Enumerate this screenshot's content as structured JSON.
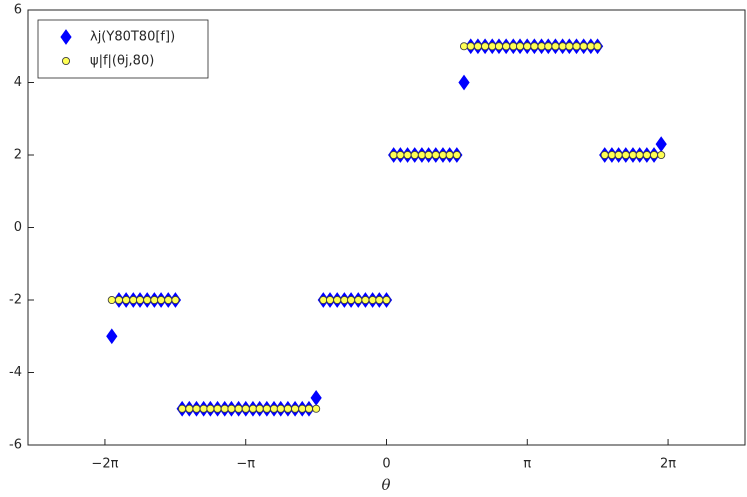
{
  "chart_data": {
    "type": "scatter",
    "x_label": "θ",
    "xlim": [
      -8,
      8
    ],
    "ylim": [
      -6,
      6
    ],
    "xticks": [
      {
        "value": -6.2832,
        "label": "−2π"
      },
      {
        "value": -3.1416,
        "label": "−π"
      },
      0,
      {
        "value": 3.1416,
        "label": "π"
      },
      {
        "value": 6.2832,
        "label": "2π"
      }
    ],
    "yticks": [
      -6,
      -4,
      -2,
      0,
      2,
      4,
      6
    ],
    "grid": false,
    "legend": "upper left",
    "x": [
      -6.13,
      -5.97,
      -5.81,
      -5.65,
      -5.5,
      -5.34,
      -5.18,
      -5.03,
      -4.87,
      -4.71,
      -4.56,
      -4.4,
      -4.24,
      -4.08,
      -3.93,
      -3.77,
      -3.61,
      -3.46,
      -3.3,
      -3.14,
      -2.98,
      -2.83,
      -2.67,
      -2.51,
      -2.36,
      -2.2,
      -2.04,
      -1.88,
      -1.73,
      -1.57,
      -1.41,
      -1.26,
      -1.1,
      -0.94,
      -0.79,
      -0.63,
      -0.47,
      -0.31,
      -0.16,
      0,
      0.16,
      0.31,
      0.47,
      0.63,
      0.79,
      0.94,
      1.1,
      1.26,
      1.41,
      1.57,
      1.73,
      1.88,
      2.04,
      2.2,
      2.36,
      2.51,
      2.67,
      2.83,
      2.98,
      3.14,
      3.3,
      3.46,
      3.61,
      3.77,
      3.93,
      4.08,
      4.24,
      4.4,
      4.56,
      4.71,
      4.87,
      5.03,
      5.18,
      5.34,
      5.5,
      5.65,
      5.81,
      5.97,
      6.13
    ],
    "series": [
      {
        "name": "λj(Y80T80[f])",
        "color": "#0000ff",
        "marker": "diamond",
        "values": [
          -3,
          -2,
          -2,
          -2,
          -2,
          -2,
          -2,
          -2,
          -2,
          -2,
          -5,
          -5,
          -5,
          -5,
          -5,
          -5,
          -5,
          -5,
          -5,
          -5,
          -5,
          -5,
          -5,
          -5,
          -5,
          -5,
          -5,
          -5,
          -5,
          -4.7,
          -2,
          -2,
          -2,
          -2,
          -2,
          -2,
          -2,
          -2,
          -2,
          -2,
          2,
          2,
          2,
          2,
          2,
          2,
          2,
          2,
          2,
          2,
          4,
          5,
          5,
          5,
          5,
          5,
          5,
          5,
          5,
          5,
          5,
          5,
          5,
          5,
          5,
          5,
          5,
          5,
          5,
          5,
          2,
          2,
          2,
          2,
          2,
          2,
          2,
          2,
          2.3
        ]
      },
      {
        "name": "ψ|f|(θj,80)",
        "color": "#ffff55",
        "marker": "circle",
        "values": [
          -2,
          -2,
          -2,
          -2,
          -2,
          -2,
          -2,
          -2,
          -2,
          -2,
          -5,
          -5,
          -5,
          -5,
          -5,
          -5,
          -5,
          -5,
          -5,
          -5,
          -5,
          -5,
          -5,
          -5,
          -5,
          -5,
          -5,
          -5,
          -5,
          -5,
          -2,
          -2,
          -2,
          -2,
          -2,
          -2,
          -2,
          -2,
          -2,
          -2,
          2,
          2,
          2,
          2,
          2,
          2,
          2,
          2,
          2,
          2,
          5,
          5,
          5,
          5,
          5,
          5,
          5,
          5,
          5,
          5,
          5,
          5,
          5,
          5,
          5,
          5,
          5,
          5,
          5,
          5,
          2,
          2,
          2,
          2,
          2,
          2,
          2,
          2,
          2
        ]
      }
    ]
  }
}
